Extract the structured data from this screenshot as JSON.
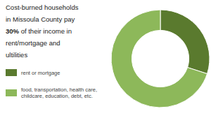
{
  "chart_data": {
    "type": "pie",
    "title": [
      "Cost-burned households",
      "in Missoula County pay",
      [
        "30%",
        " of their income in"
      ],
      "rent/mortgage and",
      "ultilities"
    ],
    "categories": [
      "rent or mortgage",
      "food, transportation, health care,\nchildcare, education, debt, etc."
    ],
    "values": [
      30,
      70
    ],
    "colors": [
      "#5a7a2e",
      "#8db85a"
    ],
    "legend": "lower left"
  }
}
